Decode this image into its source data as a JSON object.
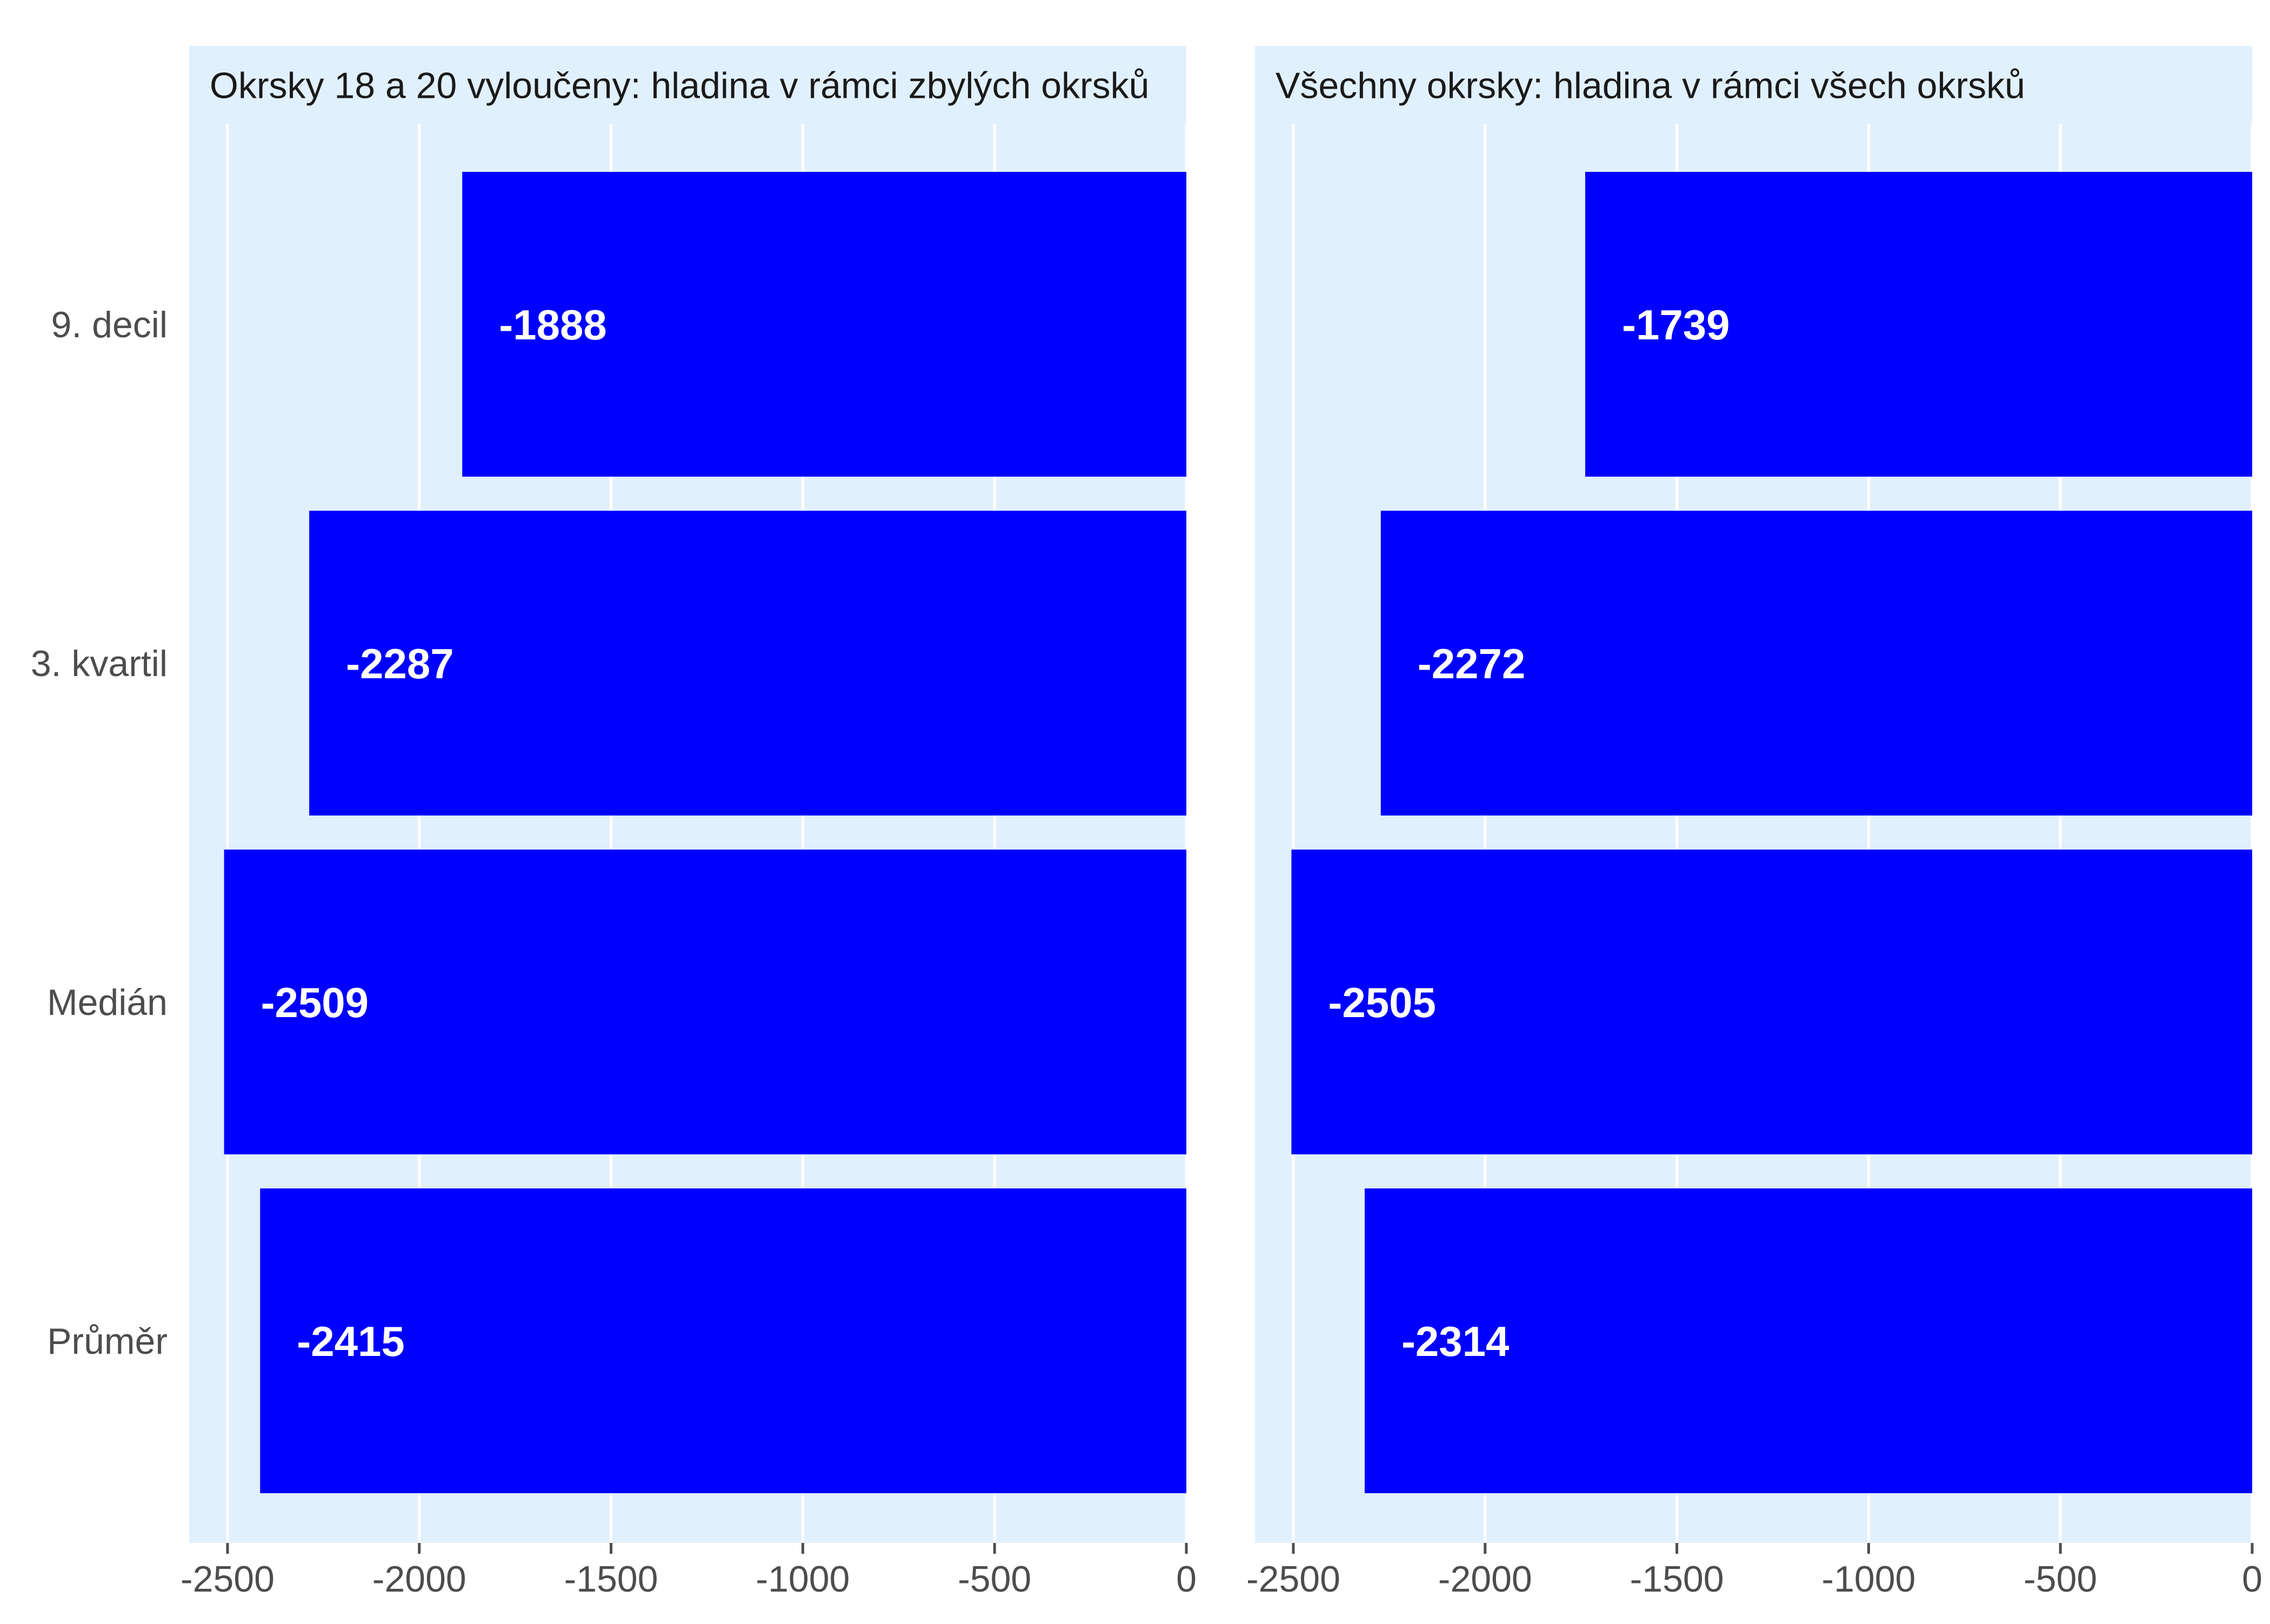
{
  "chart_data": [
    {
      "type": "bar",
      "orientation": "horizontal",
      "title": "Okrsky 18 a 20 vyloučeny: hladina v rámci zbylých okrsků",
      "categories": [
        "9. decil",
        "3. kvartil",
        "Medián",
        "Průměr"
      ],
      "values": [
        -1888,
        -2287,
        -2509,
        -2415
      ],
      "value_labels": [
        "-1888",
        "-2287",
        "-2509",
        "-2415"
      ],
      "xlim": [
        -2600,
        0
      ],
      "xticks": [
        -2500,
        -2000,
        -1500,
        -1000,
        -500,
        0
      ],
      "xtick_labels": [
        "-2500",
        "-2000",
        "-1500",
        "-1000",
        "-500",
        "0"
      ],
      "xlabel": "",
      "ylabel": "",
      "grid": true,
      "bar_color": "#0000ff",
      "panel_color": "#e1f0fd"
    },
    {
      "type": "bar",
      "orientation": "horizontal",
      "title": "Všechny okrsky: hladina v rámci všech okrsků",
      "categories": [
        "9. decil",
        "3. kvartil",
        "Medián",
        "Průměr"
      ],
      "values": [
        -1739,
        -2272,
        -2505,
        -2314
      ],
      "value_labels": [
        "-1739",
        "-2272",
        "-2505",
        "-2314"
      ],
      "xlim": [
        -2600,
        0
      ],
      "xticks": [
        -2500,
        -2000,
        -1500,
        -1000,
        -500,
        0
      ],
      "xtick_labels": [
        "-2500",
        "-2000",
        "-1500",
        "-1000",
        "-500",
        "0"
      ],
      "xlabel": "",
      "ylabel": "",
      "grid": true,
      "bar_color": "#0000ff",
      "panel_color": "#e1f0fd"
    }
  ]
}
